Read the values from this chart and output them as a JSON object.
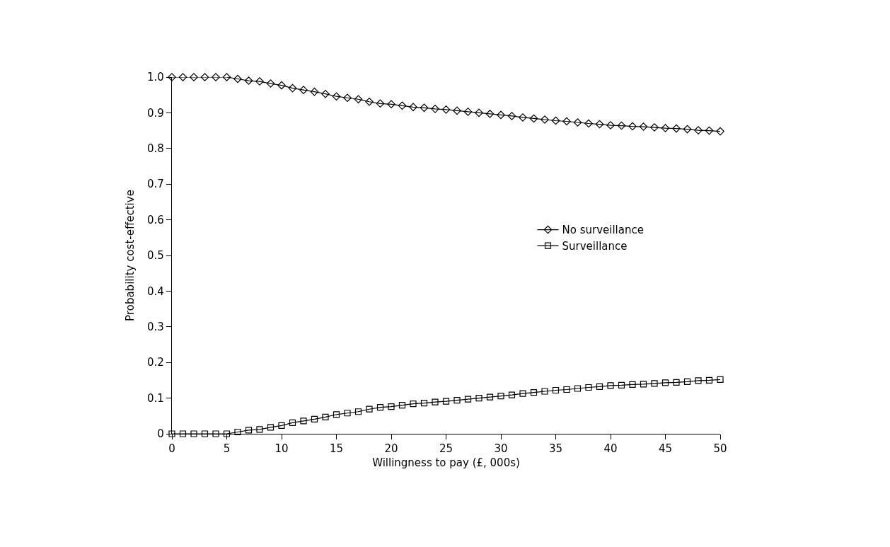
{
  "chart_data": {
    "type": "line",
    "xlabel": "Willingness to pay (£, 000s)",
    "ylabel": "Probability cost-effective",
    "x": [
      0,
      1,
      2,
      3,
      4,
      5,
      6,
      7,
      8,
      9,
      10,
      11,
      12,
      13,
      14,
      15,
      16,
      17,
      18,
      19,
      20,
      21,
      22,
      23,
      24,
      25,
      26,
      27,
      28,
      29,
      30,
      31,
      32,
      33,
      34,
      35,
      36,
      37,
      38,
      39,
      40,
      41,
      42,
      43,
      44,
      45,
      46,
      47,
      48,
      49,
      50
    ],
    "series": [
      {
        "name": "No surveillance",
        "color": "#000000",
        "marker": "diamond",
        "values": [
          1.0,
          1.0,
          1.0,
          1.0,
          1.0,
          1.0,
          0.995,
          0.99,
          0.988,
          0.982,
          0.977,
          0.969,
          0.964,
          0.959,
          0.953,
          0.946,
          0.942,
          0.938,
          0.931,
          0.926,
          0.924,
          0.92,
          0.916,
          0.914,
          0.911,
          0.909,
          0.906,
          0.903,
          0.9,
          0.897,
          0.894,
          0.891,
          0.887,
          0.884,
          0.881,
          0.878,
          0.876,
          0.873,
          0.87,
          0.868,
          0.865,
          0.864,
          0.862,
          0.861,
          0.859,
          0.857,
          0.856,
          0.854,
          0.851,
          0.85,
          0.848
        ]
      },
      {
        "name": "Surveillance",
        "color": "#000000",
        "marker": "square",
        "values": [
          0,
          0,
          0,
          0,
          0,
          0,
          0.005,
          0.01,
          0.012,
          0.018,
          0.023,
          0.031,
          0.036,
          0.041,
          0.047,
          0.054,
          0.058,
          0.062,
          0.069,
          0.074,
          0.076,
          0.08,
          0.084,
          0.086,
          0.089,
          0.091,
          0.094,
          0.097,
          0.1,
          0.103,
          0.106,
          0.109,
          0.113,
          0.116,
          0.119,
          0.122,
          0.124,
          0.127,
          0.13,
          0.132,
          0.135,
          0.136,
          0.138,
          0.139,
          0.141,
          0.143,
          0.144,
          0.146,
          0.149,
          0.15,
          0.152
        ]
      }
    ],
    "xlim": [
      0,
      50
    ],
    "xticks": [
      0,
      5,
      10,
      15,
      20,
      25,
      30,
      35,
      40,
      45,
      50
    ],
    "ylim": [
      0,
      1
    ],
    "yticks": [
      0,
      0.1,
      0.2,
      0.3,
      0.4,
      0.5,
      0.6,
      0.7,
      0.8,
      0.9,
      {
        "value": 1,
        "label": "1.0"
      }
    ],
    "legend": "right",
    "line_style": "solid"
  }
}
